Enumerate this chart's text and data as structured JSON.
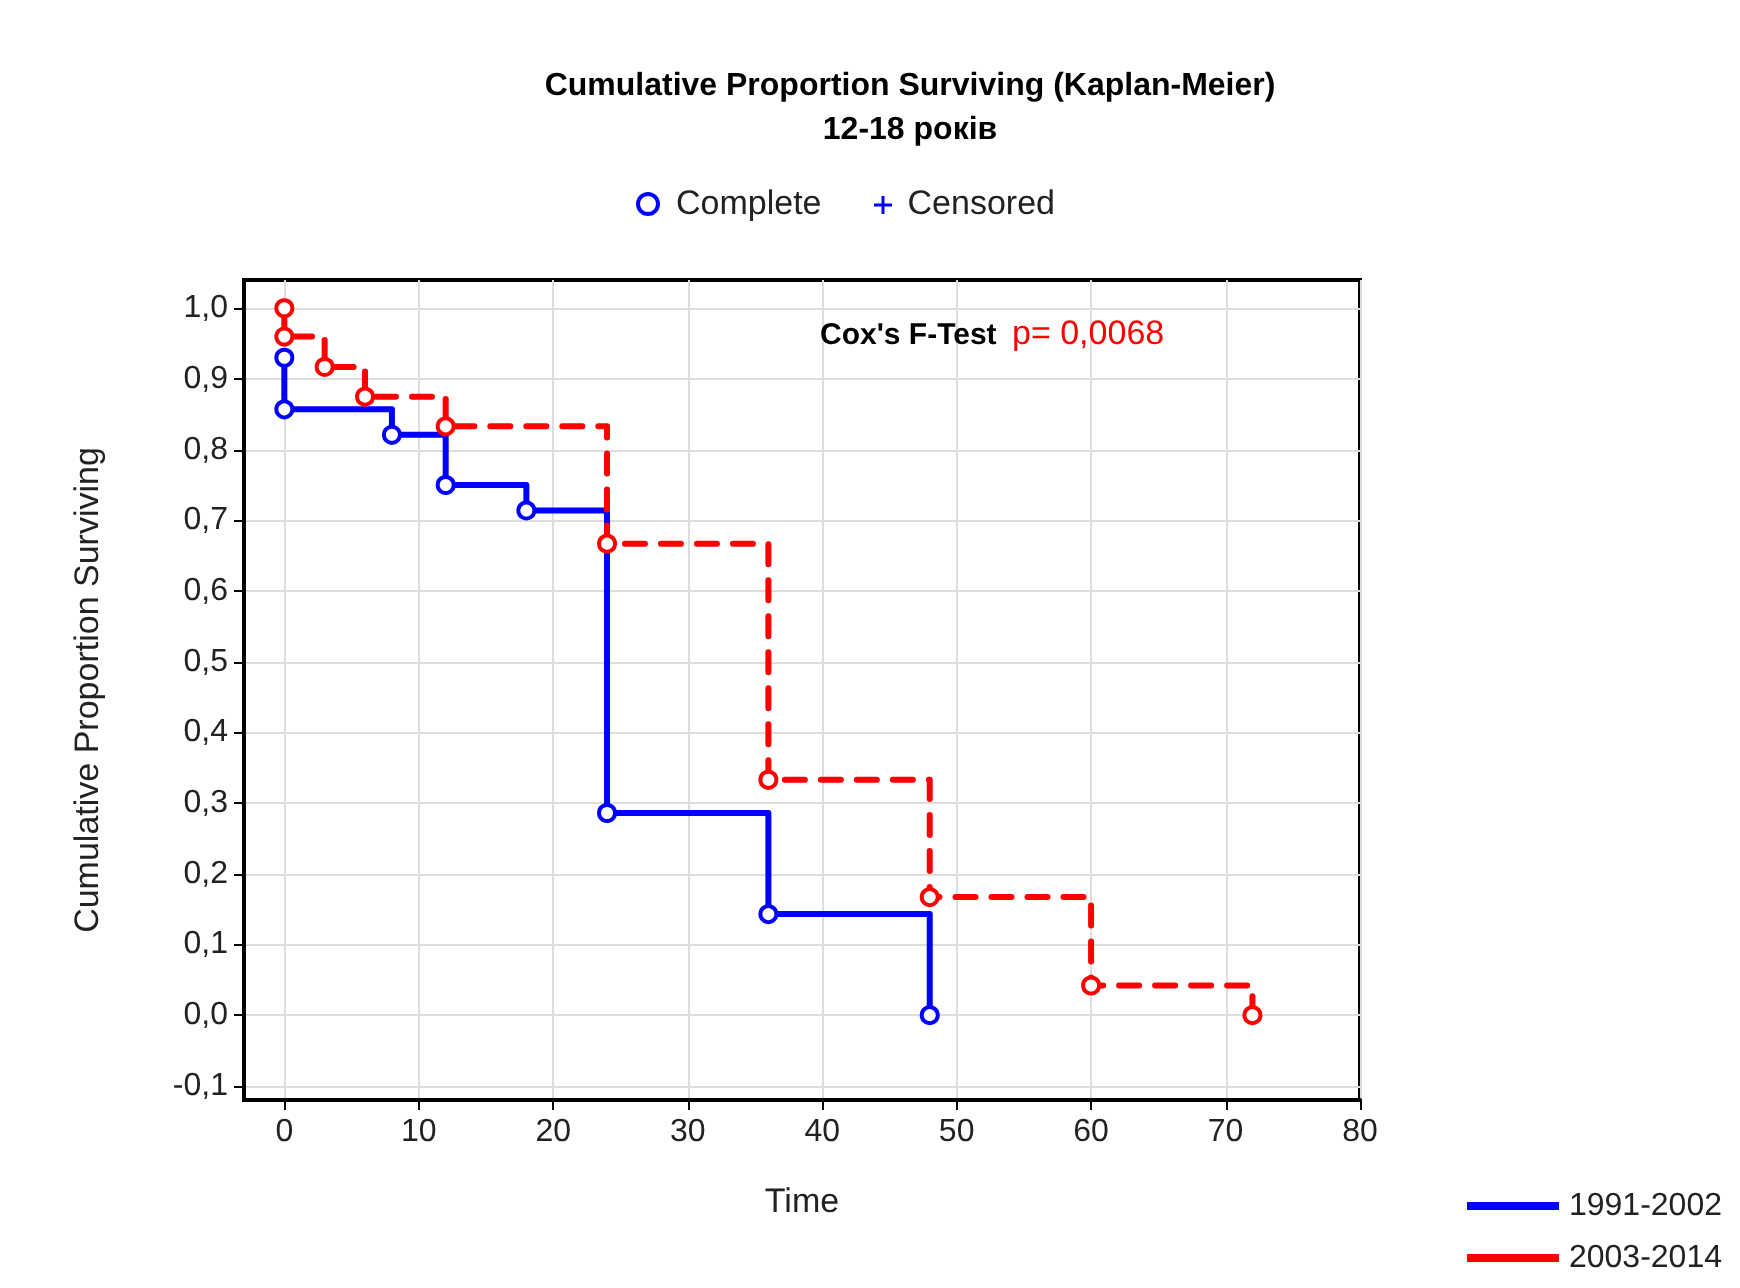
{
  "chart_data": {
    "type": "step",
    "title": "Cumulative Proportion Surviving (Kaplan-Meier)",
    "subtitle": "12-18 років",
    "xlabel": "Time",
    "ylabel": "Cumulative Proportion Surviving",
    "annotations": [
      "Cox's F-Test",
      "p= 0,0068",
      "Complete",
      "Censored"
    ],
    "series": [
      {
        "name": "1991-2002",
        "color": "#0000ff",
        "line_style": "solid",
        "x": [
          0,
          0,
          8,
          12,
          18,
          24,
          36,
          48
        ],
        "values": [
          0.93,
          0.857,
          0.821,
          0.75,
          0.714,
          0.286,
          0.143,
          0.0
        ]
      },
      {
        "name": "2003-2014",
        "color": "#ff0000",
        "line_style": "dashed",
        "x": [
          0,
          0,
          3,
          6,
          12,
          24,
          36,
          48,
          60,
          72
        ],
        "values": [
          1.0,
          0.96,
          0.917,
          0.875,
          0.833,
          0.667,
          0.333,
          0.167,
          0.042,
          0.0
        ]
      }
    ],
    "xlim": [
      -3,
      80
    ],
    "xticks": [
      0,
      10,
      20,
      30,
      40,
      50,
      60,
      70,
      80
    ],
    "ylim": [
      -0.12,
      1.04
    ],
    "yticks": [
      {
        "value": -0.1,
        "label": "-0,1"
      },
      {
        "value": 0,
        "label": "0,0"
      },
      {
        "value": 0.1,
        "label": "0,1"
      },
      {
        "value": 0.2,
        "label": "0,2"
      },
      {
        "value": 0.3,
        "label": "0,3"
      },
      {
        "value": 0.4,
        "label": "0,4"
      },
      {
        "value": 0.5,
        "label": "0,5"
      },
      {
        "value": 0.6,
        "label": "0,6"
      },
      {
        "value": 0.7,
        "label": "0,7"
      },
      {
        "value": 0.8,
        "label": "0,8"
      },
      {
        "value": 0.9,
        "label": "0,9"
      },
      {
        "value": 1.0,
        "label": "1,0"
      }
    ],
    "grid": true,
    "legend": "bottom right",
    "marker": "circle"
  }
}
